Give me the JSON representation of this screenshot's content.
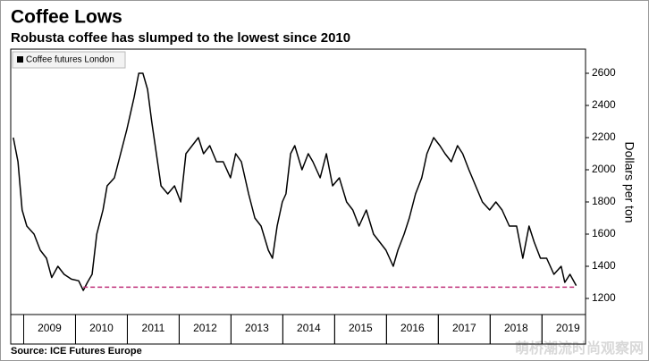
{
  "chart_data": {
    "type": "line",
    "title": "Coffee Lows",
    "subtitle": "Robusta coffee has slumped to the lowest since 2010",
    "y_label": "Dollars per ton",
    "source": "Source: ICE Futures Europe",
    "watermark": "萌桥潮流时尚观察网",
    "legend_position": "top-left",
    "grid": false,
    "x": [
      2008.8,
      2008.89,
      2008.97,
      2009.06,
      2009.2,
      2009.32,
      2009.44,
      2009.54,
      2009.66,
      2009.78,
      2009.92,
      2010.06,
      2010.15,
      2010.23,
      2010.32,
      2010.41,
      2010.53,
      2010.61,
      2010.75,
      2010.87,
      2010.99,
      2011.13,
      2011.22,
      2011.3,
      2011.39,
      2011.47,
      2011.56,
      2011.65,
      2011.78,
      2011.91,
      2012.03,
      2012.13,
      2012.25,
      2012.37,
      2012.47,
      2012.59,
      2012.72,
      2012.85,
      2012.99,
      2013.09,
      2013.2,
      2013.34,
      2013.46,
      2013.58,
      2013.72,
      2013.8,
      2013.89,
      2013.99,
      2014.06,
      2014.15,
      2014.23,
      2014.37,
      2014.49,
      2014.58,
      2014.72,
      2014.84,
      2014.96,
      2015.09,
      2015.23,
      2015.35,
      2015.47,
      2015.61,
      2015.75,
      2015.87,
      2015.99,
      2016.13,
      2016.22,
      2016.34,
      2016.44,
      2016.56,
      2016.68,
      2016.78,
      2016.91,
      2017.03,
      2017.13,
      2017.25,
      2017.37,
      2017.47,
      2017.59,
      2017.72,
      2017.85,
      2017.99,
      2018.11,
      2018.23,
      2018.37,
      2018.51,
      2018.63,
      2018.75,
      2018.85,
      2018.97,
      2019.09,
      2019.23,
      2019.37,
      2019.44,
      2019.54,
      2019.66
    ],
    "series": [
      {
        "name": "Coffee futures London",
        "color": "#000000",
        "values": [
          2200,
          2050,
          1750,
          1650,
          1600,
          1500,
          1450,
          1330,
          1400,
          1350,
          1320,
          1310,
          1250,
          1300,
          1350,
          1600,
          1750,
          1900,
          1950,
          2100,
          2250,
          2450,
          2600,
          2600,
          2500,
          2300,
          2100,
          1900,
          1850,
          1900,
          1800,
          2100,
          2150,
          2200,
          2100,
          2150,
          2050,
          2050,
          1950,
          2100,
          2050,
          1850,
          1700,
          1650,
          1500,
          1450,
          1650,
          1800,
          1850,
          2100,
          2150,
          2000,
          2100,
          2050,
          1950,
          2100,
          1900,
          1950,
          1800,
          1750,
          1650,
          1750,
          1600,
          1550,
          1500,
          1400,
          1500,
          1600,
          1700,
          1850,
          1950,
          2100,
          2200,
          2150,
          2100,
          2050,
          2150,
          2100,
          2000,
          1900,
          1800,
          1750,
          1800,
          1750,
          1650,
          1650,
          1450,
          1650,
          1550,
          1450,
          1450,
          1350,
          1400,
          1300,
          1350,
          1280
        ]
      }
    ],
    "reference_line": {
      "y": 1270,
      "x": [
        2010.15,
        2019.66
      ],
      "color": "#c0307a"
    },
    "xlim": [
      2008.75,
      2019.84
    ],
    "xticks": [
      {
        "value": 2009.5,
        "label": "2009"
      },
      {
        "value": 2010.5,
        "label": "2010"
      },
      {
        "value": 2011.5,
        "label": "2011"
      },
      {
        "value": 2012.5,
        "label": "2012"
      },
      {
        "value": 2013.5,
        "label": "2013"
      },
      {
        "value": 2014.5,
        "label": "2014"
      },
      {
        "value": 2015.5,
        "label": "2015"
      },
      {
        "value": 2016.5,
        "label": "2016"
      },
      {
        "value": 2017.5,
        "label": "2017"
      },
      {
        "value": 2018.5,
        "label": "2018"
      },
      {
        "value": 2019.5,
        "label": "2019"
      }
    ],
    "ylim": [
      1100,
      2750
    ],
    "yticks": [
      1200,
      1400,
      1600,
      1800,
      2000,
      2200,
      2400,
      2600
    ]
  }
}
